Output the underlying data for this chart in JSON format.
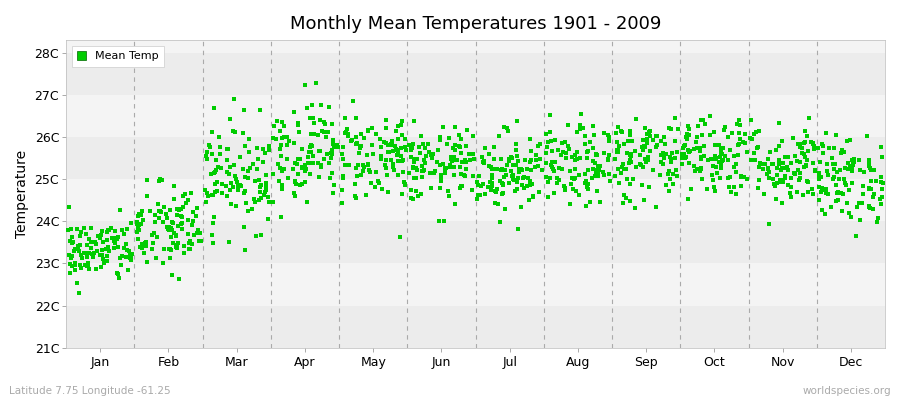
{
  "title": "Monthly Mean Temperatures 1901 - 2009",
  "ylabel": "Temperature",
  "subtitle": "Latitude 7.75 Longitude -61.25",
  "watermark": "worldspecies.org",
  "months": [
    "Jan",
    "Feb",
    "Mar",
    "Apr",
    "May",
    "Jun",
    "Jul",
    "Aug",
    "Sep",
    "Oct",
    "Nov",
    "Dec"
  ],
  "yticks": [
    21,
    22,
    23,
    24,
    25,
    26,
    27,
    28
  ],
  "ylim": [
    21.0,
    28.3
  ],
  "dot_color": "#00cc00",
  "n_years": 109,
  "seed": 42,
  "monthly_means": [
    23.3,
    23.8,
    25.1,
    25.7,
    25.55,
    25.3,
    25.2,
    25.3,
    25.5,
    25.6,
    25.35,
    25.0
  ],
  "monthly_stds": [
    0.38,
    0.55,
    0.65,
    0.6,
    0.55,
    0.45,
    0.48,
    0.48,
    0.52,
    0.5,
    0.5,
    0.52
  ]
}
